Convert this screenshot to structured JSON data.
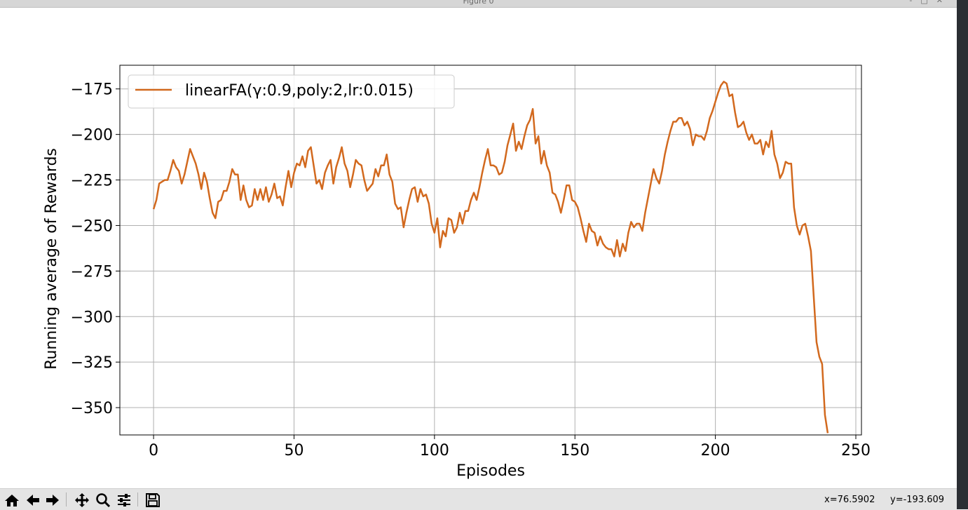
{
  "window": {
    "title": "Figure 0"
  },
  "chart_data": {
    "type": "line",
    "xlabel": "Episodes",
    "ylabel": "Running average of Rewards",
    "xlim": [
      -12,
      252
    ],
    "ylim": [
      -365,
      -162
    ],
    "xticks": [
      0,
      50,
      100,
      150,
      200,
      250
    ],
    "yticks": [
      -175,
      -200,
      -225,
      -250,
      -275,
      -300,
      -325,
      -350
    ],
    "xtick_labels": [
      "0",
      "50",
      "100",
      "150",
      "200",
      "250"
    ],
    "ytick_labels": [
      "−175",
      "−200",
      "−225",
      "−250",
      "−275",
      "−300",
      "−325",
      "−350"
    ],
    "grid": true,
    "legend_position": "top-left",
    "series": [
      {
        "name": "linearFA(γ:0.9,poly:2,lr:0.015)",
        "color": "#d2691e",
        "x": [
          0,
          1,
          2,
          3,
          4,
          5,
          6,
          7,
          8,
          9,
          10,
          11,
          12,
          13,
          14,
          15,
          16,
          17,
          18,
          19,
          20,
          21,
          22,
          23,
          24,
          25,
          26,
          27,
          28,
          29,
          30,
          31,
          32,
          33,
          34,
          35,
          36,
          37,
          38,
          39,
          40,
          41,
          42,
          43,
          44,
          45,
          46,
          47,
          48,
          49,
          50,
          51,
          52,
          53,
          54,
          55,
          56,
          57,
          58,
          59,
          60,
          61,
          62,
          63,
          64,
          65,
          66,
          67,
          68,
          69,
          70,
          71,
          72,
          73,
          74,
          75,
          76,
          77,
          78,
          79,
          80,
          81,
          82,
          83,
          84,
          85,
          86,
          87,
          88,
          89,
          90,
          91,
          92,
          93,
          94,
          95,
          96,
          97,
          98,
          99,
          100,
          101,
          102,
          103,
          104,
          105,
          106,
          107,
          108,
          109,
          110,
          111,
          112,
          113,
          114,
          115,
          116,
          117,
          118,
          119,
          120,
          121,
          122,
          123,
          124,
          125,
          126,
          127,
          128,
          129,
          130,
          131,
          132,
          133,
          134,
          135,
          136,
          137,
          138,
          139,
          140,
          141,
          142,
          143,
          144,
          145,
          146,
          147,
          148,
          149,
          150,
          151,
          152,
          153,
          154,
          155,
          156,
          157,
          158,
          159,
          160,
          161,
          162,
          163,
          164,
          165,
          166,
          167,
          168,
          169,
          170,
          171,
          172,
          173,
          174,
          175,
          176,
          177,
          178,
          179,
          180,
          181,
          182,
          183,
          184,
          185,
          186,
          187,
          188,
          189,
          190,
          191,
          192,
          193,
          194,
          195,
          196,
          197,
          198,
          199,
          200,
          201,
          202,
          203,
          204,
          205,
          206,
          207,
          208,
          209,
          210,
          211,
          212,
          213,
          214,
          215,
          216,
          217,
          218,
          219,
          220,
          221,
          222,
          223,
          224,
          225,
          226,
          227,
          228,
          229,
          230,
          231,
          232,
          233,
          234,
          235,
          236,
          237,
          238,
          239,
          240
        ],
        "values": [
          -241,
          -236,
          -227,
          -226,
          -225,
          -225,
          -220,
          -214,
          -218,
          -220,
          -227,
          -222,
          -215,
          -208,
          -212,
          -216,
          -222,
          -230,
          -221,
          -226,
          -235,
          -243,
          -246,
          -237,
          -236,
          -231,
          -231,
          -226,
          -219,
          -222,
          -222,
          -236,
          -228,
          -236,
          -240,
          -239,
          -230,
          -236,
          -230,
          -236,
          -229,
          -237,
          -233,
          -227,
          -235,
          -234,
          -239,
          -229,
          -220,
          -229,
          -221,
          -216,
          -217,
          -212,
          -218,
          -209,
          -207,
          -217,
          -227,
          -225,
          -230,
          -221,
          -217,
          -214,
          -227,
          -218,
          -213,
          -207,
          -216,
          -220,
          -229,
          -222,
          -214,
          -216,
          -217,
          -225,
          -231,
          -229,
          -227,
          -219,
          -223,
          -217,
          -217,
          -211,
          -222,
          -226,
          -238,
          -241,
          -240,
          -251,
          -243,
          -236,
          -230,
          -229,
          -237,
          -230,
          -234,
          -233,
          -238,
          -249,
          -254,
          -246,
          -262,
          -253,
          -256,
          -246,
          -247,
          -254,
          -251,
          -243,
          -249,
          -242,
          -242,
          -236,
          -232,
          -236,
          -229,
          -221,
          -214,
          -208,
          -217,
          -217,
          -218,
          -222,
          -221,
          -215,
          -206,
          -200,
          -194,
          -209,
          -204,
          -208,
          -201,
          -195,
          -192,
          -186,
          -205,
          -201,
          -216,
          -209,
          -217,
          -221,
          -232,
          -233,
          -237,
          -243,
          -236,
          -228,
          -228,
          -236,
          -237,
          -240,
          -246,
          -253,
          -259,
          -249,
          -253,
          -254,
          -261,
          -256,
          -260,
          -262,
          -263,
          -263,
          -267,
          -258,
          -267,
          -260,
          -264,
          -254,
          -248,
          -251,
          -249,
          -249,
          -253,
          -243,
          -235,
          -227,
          -219,
          -224,
          -227,
          -220,
          -211,
          -204,
          -198,
          -193,
          -193,
          -191,
          -191,
          -195,
          -193,
          -197,
          -206,
          -200,
          -201,
          -201,
          -203,
          -198,
          -191,
          -187,
          -182,
          -177,
          -173,
          -171,
          -172,
          -179,
          -178,
          -188,
          -196,
          -195,
          -193,
          -199,
          -203,
          -200,
          -205,
          -205,
          -203,
          -211,
          -204,
          -207,
          -198,
          -211,
          -216,
          -224,
          -221,
          -215,
          -216,
          -216,
          -240,
          -250,
          -255,
          -250,
          -249,
          -256,
          -264,
          -289,
          -314,
          -322,
          -326,
          -354,
          -364
        ]
      }
    ]
  },
  "toolbar": {
    "home": "home-icon",
    "back": "back-arrow-icon",
    "forward": "forward-arrow-icon",
    "pan": "pan-icon",
    "zoom": "zoom-icon",
    "configure": "configure-subplots-icon",
    "save": "save-icon"
  },
  "status": {
    "x": "x=76.5902",
    "y": "y=-193.609"
  }
}
